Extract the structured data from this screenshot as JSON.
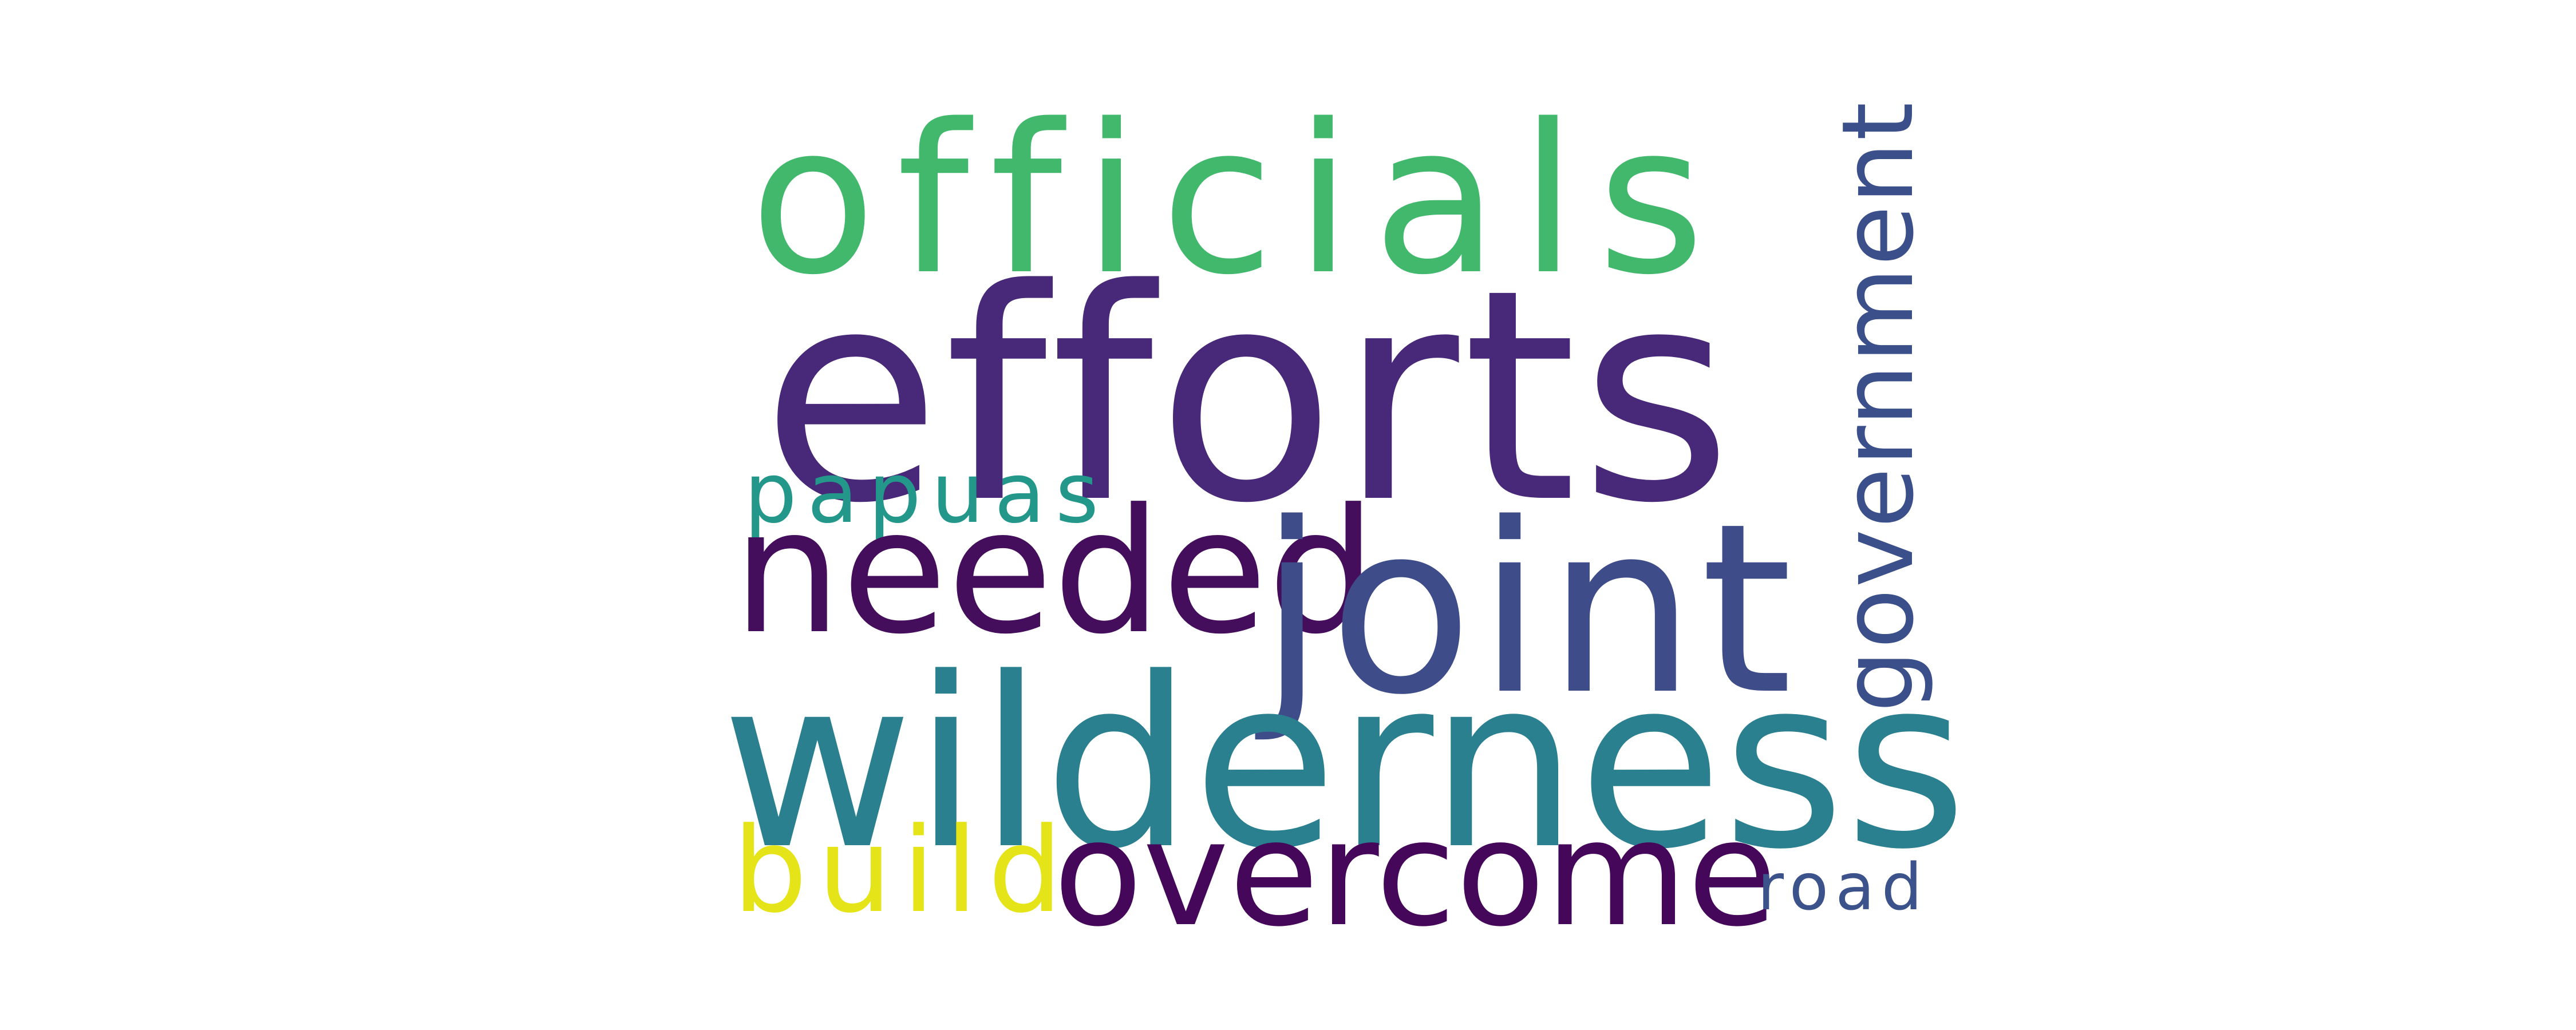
{
  "words": {
    "officials": {
      "text": "officials",
      "color": "#42b86d"
    },
    "efforts": {
      "text": "efforts",
      "color": "#482878"
    },
    "papuas": {
      "text": "papuas",
      "color": "#23988a"
    },
    "needed": {
      "text": "needed",
      "color": "#440e5c"
    },
    "joint": {
      "text": "joint",
      "color": "#3e4c8a"
    },
    "wilderness": {
      "text": "wilderness",
      "color": "#2a808e"
    },
    "build": {
      "text": "build",
      "color": "#e5e418"
    },
    "overcome": {
      "text": "overcome",
      "color": "#45075a"
    },
    "road": {
      "text": "road",
      "color": "#3b528b"
    },
    "government": {
      "text": "government",
      "color": "#3b4f8a",
      "orientation": "vertical"
    }
  }
}
